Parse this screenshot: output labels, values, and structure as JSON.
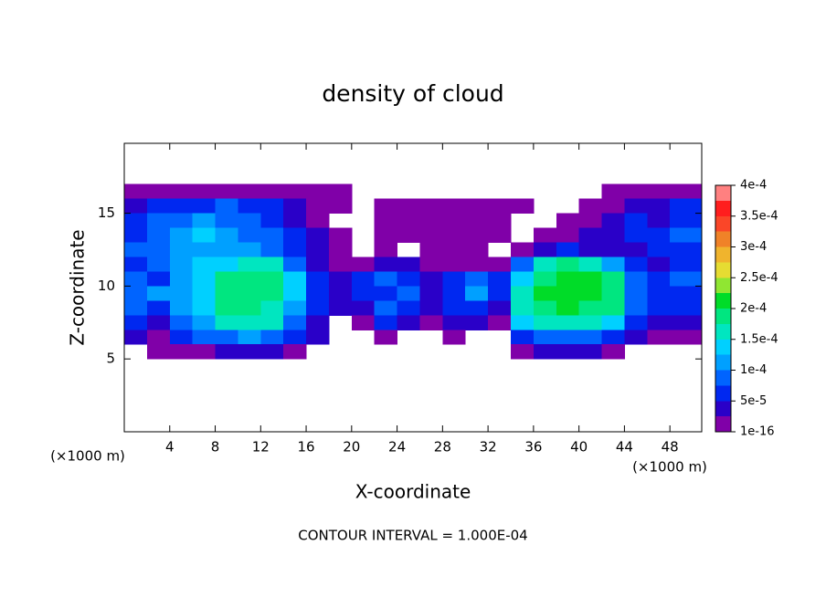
{
  "chart_data": {
    "type": "contour",
    "title": "density of cloud",
    "xlabel": "X-coordinate",
    "ylabel": "Z-coordinate",
    "x_unit": "(×1000 m)",
    "y_unit": "(×1000 m)",
    "footer": "CONTOUR INTERVAL = 1.000E-04",
    "xlim": [
      0,
      50.8
    ],
    "ylim": [
      0,
      19.8
    ],
    "xticks": [
      4,
      8,
      12,
      16,
      20,
      24,
      28,
      32,
      36,
      40,
      44,
      48
    ],
    "yticks": [
      5,
      10,
      15
    ],
    "x": [
      1,
      3,
      5,
      7,
      9,
      11,
      13,
      15,
      17,
      19,
      21,
      23,
      25,
      27,
      29,
      31,
      33,
      35,
      37,
      39,
      41,
      43,
      45,
      47,
      49
    ],
    "y": [
      16.5,
      15.5,
      14.5,
      13.5,
      12.5,
      11.5,
      10.5,
      9.5,
      8.5,
      7.5,
      6.5,
      5.5
    ],
    "values": [
      [
        1e-05,
        1e-05,
        1e-05,
        1e-05,
        1e-05,
        1e-05,
        1e-05,
        1e-05,
        1e-05,
        1e-05,
        null,
        null,
        null,
        null,
        null,
        null,
        null,
        null,
        null,
        null,
        null,
        1e-05,
        1e-05,
        1e-05,
        1e-05
      ],
      [
        3e-05,
        6e-05,
        6e-05,
        6e-05,
        9e-05,
        6e-05,
        6e-05,
        3e-05,
        1e-05,
        1e-05,
        null,
        1e-05,
        1e-05,
        1e-05,
        1e-05,
        1e-05,
        1e-05,
        1e-05,
        null,
        null,
        1e-05,
        1e-05,
        3e-05,
        3e-05,
        6e-05
      ],
      [
        6e-05,
        9e-05,
        9e-05,
        0.00011,
        9e-05,
        9e-05,
        6e-05,
        3e-05,
        1e-05,
        null,
        null,
        1e-05,
        1e-05,
        1e-05,
        1e-05,
        1e-05,
        1e-05,
        null,
        null,
        1e-05,
        1e-05,
        3e-05,
        6e-05,
        3e-05,
        6e-05
      ],
      [
        6e-05,
        9e-05,
        0.00011,
        0.00014,
        0.00011,
        9e-05,
        9e-05,
        6e-05,
        3e-05,
        1e-05,
        null,
        1e-05,
        1e-05,
        1e-05,
        1e-05,
        1e-05,
        1e-05,
        null,
        1e-05,
        1e-05,
        3e-05,
        3e-05,
        6e-05,
        6e-05,
        9e-05
      ],
      [
        9e-05,
        9e-05,
        0.00011,
        0.00011,
        0.00011,
        0.00011,
        9e-05,
        6e-05,
        3e-05,
        1e-05,
        null,
        1e-05,
        null,
        1e-05,
        1e-05,
        1e-05,
        null,
        1e-05,
        3e-05,
        6e-05,
        3e-05,
        3e-05,
        3e-05,
        6e-05,
        6e-05
      ],
      [
        6e-05,
        9e-05,
        0.00011,
        0.00014,
        0.00014,
        0.00016,
        0.00016,
        9e-05,
        3e-05,
        1e-05,
        1e-05,
        3e-05,
        3e-05,
        1e-05,
        1e-05,
        1e-05,
        1e-05,
        9e-05,
        0.00016,
        0.00018,
        0.00016,
        0.00011,
        6e-05,
        3e-05,
        6e-05
      ],
      [
        9e-05,
        6e-05,
        0.00011,
        0.00014,
        0.00018,
        0.00018,
        0.00018,
        0.00014,
        6e-05,
        3e-05,
        6e-05,
        9e-05,
        6e-05,
        3e-05,
        6e-05,
        9e-05,
        6e-05,
        0.00014,
        0.00018,
        0.00021,
        0.00021,
        0.00018,
        9e-05,
        6e-05,
        9e-05
      ],
      [
        9e-05,
        0.00011,
        0.00011,
        0.00014,
        0.00018,
        0.00018,
        0.00018,
        0.00014,
        6e-05,
        3e-05,
        6e-05,
        6e-05,
        9e-05,
        3e-05,
        6e-05,
        0.00011,
        6e-05,
        0.00016,
        0.00021,
        0.00021,
        0.00021,
        0.00018,
        9e-05,
        6e-05,
        6e-05
      ],
      [
        9e-05,
        6e-05,
        0.00011,
        0.00014,
        0.00018,
        0.00018,
        0.00016,
        0.00011,
        6e-05,
        3e-05,
        3e-05,
        9e-05,
        6e-05,
        3e-05,
        6e-05,
        6e-05,
        3e-05,
        0.00016,
        0.00018,
        0.00021,
        0.00018,
        0.00018,
        9e-05,
        6e-05,
        6e-05
      ],
      [
        6e-05,
        3e-05,
        9e-05,
        0.00011,
        0.00016,
        0.00016,
        0.00016,
        9e-05,
        3e-05,
        null,
        1e-05,
        6e-05,
        3e-05,
        1e-05,
        3e-05,
        3e-05,
        1e-05,
        0.00014,
        0.00016,
        0.00016,
        0.00016,
        0.00014,
        6e-05,
        3e-05,
        3e-05
      ],
      [
        3e-05,
        1e-05,
        6e-05,
        9e-05,
        9e-05,
        0.00011,
        9e-05,
        6e-05,
        3e-05,
        null,
        null,
        1e-05,
        null,
        null,
        1e-05,
        null,
        null,
        6e-05,
        9e-05,
        9e-05,
        9e-05,
        6e-05,
        3e-05,
        1e-05,
        1e-05
      ],
      [
        null,
        1e-05,
        1e-05,
        1e-05,
        3e-05,
        3e-05,
        3e-05,
        1e-05,
        null,
        null,
        null,
        null,
        null,
        null,
        null,
        null,
        null,
        1e-05,
        3e-05,
        3e-05,
        3e-05,
        1e-05,
        null,
        null,
        null
      ]
    ],
    "colorbar": {
      "levels": [
        1e-16,
        2.5e-05,
        5e-05,
        7.5e-05,
        0.0001,
        0.000125,
        0.00015,
        0.000175,
        0.0002,
        0.000225,
        0.00025,
        0.000275,
        0.0003,
        0.000325,
        0.00035,
        0.000375,
        0.0004
      ],
      "colors": [
        "#8000a8",
        "#2a00c8",
        "#0028f0",
        "#0064ff",
        "#00a0ff",
        "#00d0ff",
        "#00e6c0",
        "#00e680",
        "#00dc28",
        "#90e632",
        "#e6dc32",
        "#f0b42d",
        "#f08228",
        "#fa4628",
        "#ff1e1e",
        "#ff8080"
      ],
      "ticks": [
        {
          "value": 1e-16,
          "label": "1e-16"
        },
        {
          "value": 5e-05,
          "label": "5e-5"
        },
        {
          "value": 0.0001,
          "label": "1e-4"
        },
        {
          "value": 0.00015,
          "label": "1.5e-4"
        },
        {
          "value": 0.0002,
          "label": "2e-4"
        },
        {
          "value": 0.00025,
          "label": "2.5e-4"
        },
        {
          "value": 0.0003,
          "label": "3e-4"
        },
        {
          "value": 0.00035,
          "label": "3.5e-4"
        },
        {
          "value": 0.0004,
          "label": "4e-4"
        }
      ]
    }
  }
}
